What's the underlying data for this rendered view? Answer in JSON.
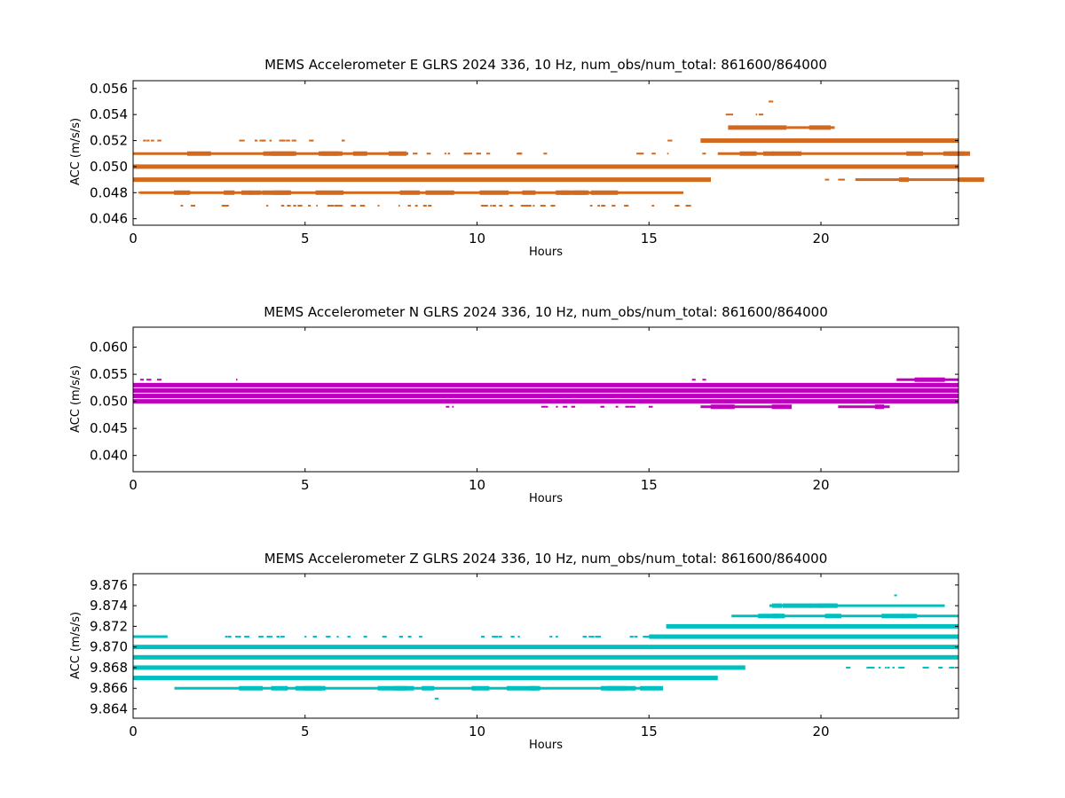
{
  "chart_data": [
    {
      "type": "scatter",
      "title": "MEMS Accelerometer E GLRS 2024 336, 10 Hz, num_obs/num_total: 861600/864000",
      "xlabel": "Hours",
      "ylabel": "ACC (m/s/s)",
      "xlim": [
        0,
        24
      ],
      "ylim": [
        0.0455,
        0.0566
      ],
      "xticks": [
        0,
        5,
        10,
        15,
        20
      ],
      "yticks": [
        0.046,
        0.048,
        0.05,
        0.052,
        0.054,
        0.056
      ],
      "ytick_labels": [
        "0.046",
        "0.048",
        "0.050",
        "0.052",
        "0.054",
        "0.056"
      ],
      "color": "#d2691e",
      "levels": [
        {
          "y": 0.047,
          "segments": [
            [
              1.3,
              16.2,
              "sparse"
            ]
          ]
        },
        {
          "y": 0.048,
          "segments": [
            [
              0.0,
              0.2,
              "sparse"
            ],
            [
              0.2,
              16.0,
              "dense"
            ]
          ]
        },
        {
          "y": 0.049,
          "segments": [
            [
              0.0,
              16.8,
              "solid"
            ],
            [
              20.0,
              21.0,
              "sparse"
            ],
            [
              21.0,
              24.0,
              "dense"
            ]
          ]
        },
        {
          "y": 0.05,
          "segments": [
            [
              0.0,
              24.0,
              "solid"
            ]
          ]
        },
        {
          "y": 0.051,
          "segments": [
            [
              0.0,
              8.0,
              "dense"
            ],
            [
              8.0,
              12.0,
              "sparse"
            ],
            [
              14.5,
              17.0,
              "sparse"
            ],
            [
              17.0,
              24.0,
              "dense"
            ]
          ]
        },
        {
          "y": 0.052,
          "segments": [
            [
              0.0,
              0.8,
              "sparse"
            ],
            [
              2.6,
              6.2,
              "sparse"
            ],
            [
              15.5,
              16.5,
              "sparse"
            ],
            [
              16.5,
              24.0,
              "solid"
            ]
          ]
        },
        {
          "y": 0.053,
          "segments": [
            [
              17.3,
              19.0,
              "solid"
            ],
            [
              19.0,
              20.4,
              "dense"
            ]
          ]
        },
        {
          "y": 0.054,
          "segments": [
            [
              17.2,
              18.9,
              "sparse"
            ]
          ]
        },
        {
          "y": 0.055,
          "segments": [
            [
              18.4,
              18.5,
              "sparse"
            ]
          ]
        }
      ]
    },
    {
      "type": "scatter",
      "title": "MEMS Accelerometer N GLRS 2024 336, 10 Hz, num_obs/num_total: 861600/864000",
      "xlabel": "Hours",
      "ylabel": "ACC (m/s/s)",
      "xlim": [
        0,
        24
      ],
      "ylim": [
        0.037,
        0.0637
      ],
      "xticks": [
        0,
        5,
        10,
        15,
        20
      ],
      "yticks": [
        0.04,
        0.045,
        0.05,
        0.055,
        0.06
      ],
      "ytick_labels": [
        "0.040",
        "0.045",
        "0.050",
        "0.055",
        "0.060"
      ],
      "color": "#bf00bf",
      "levels": [
        {
          "y": 0.049,
          "segments": [
            [
              9.0,
              9.5,
              "sparse"
            ],
            [
              11.5,
              15.0,
              "sparse"
            ],
            [
              16.5,
              19.0,
              "dense"
            ],
            [
              20.5,
              22.0,
              "dense"
            ]
          ]
        },
        {
          "y": 0.05,
          "segments": [
            [
              0.0,
              24.0,
              "solid"
            ]
          ]
        },
        {
          "y": 0.051,
          "segments": [
            [
              0.0,
              24.0,
              "solid"
            ]
          ]
        },
        {
          "y": 0.052,
          "segments": [
            [
              0.0,
              24.0,
              "solid"
            ]
          ]
        },
        {
          "y": 0.053,
          "segments": [
            [
              0.0,
              24.0,
              "solid"
            ]
          ]
        },
        {
          "y": 0.054,
          "segments": [
            [
              0.1,
              0.7,
              "sparse"
            ],
            [
              2.9,
              3.0,
              "sparse"
            ],
            [
              16.2,
              16.6,
              "sparse"
            ],
            [
              22.2,
              24.0,
              "dense"
            ]
          ]
        }
      ]
    },
    {
      "type": "scatter",
      "title": "MEMS Accelerometer Z GLRS 2024 336, 10 Hz, num_obs/num_total: 861600/864000",
      "xlabel": "Hours",
      "ylabel": "ACC (m/s/s)",
      "xlim": [
        0,
        24
      ],
      "ylim": [
        9.8631,
        9.8771
      ],
      "xticks": [
        0,
        5,
        10,
        15,
        20
      ],
      "yticks": [
        9.864,
        9.866,
        9.868,
        9.87,
        9.872,
        9.874,
        9.876
      ],
      "ytick_labels": [
        "9.864",
        "9.866",
        "9.868",
        "9.870",
        "9.872",
        "9.874",
        "9.876"
      ],
      "color": "#00bfbf",
      "levels": [
        {
          "y": 9.865,
          "segments": [
            [
              8.7,
              8.8,
              "sparse"
            ]
          ]
        },
        {
          "y": 9.866,
          "segments": [
            [
              1.2,
              15.0,
              "dense"
            ]
          ]
        },
        {
          "y": 9.867,
          "segments": [
            [
              0.0,
              17.0,
              "solid"
            ]
          ]
        },
        {
          "y": 9.868,
          "segments": [
            [
              0.0,
              17.8,
              "solid"
            ],
            [
              20.3,
              24.0,
              "sparse"
            ]
          ]
        },
        {
          "y": 9.869,
          "segments": [
            [
              0.0,
              24.0,
              "solid"
            ]
          ]
        },
        {
          "y": 9.87,
          "segments": [
            [
              0.0,
              24.0,
              "solid"
            ]
          ]
        },
        {
          "y": 9.871,
          "segments": [
            [
              0.0,
              1.0,
              "dense"
            ],
            [
              2.6,
              8.7,
              "sparse"
            ],
            [
              10.0,
              12.5,
              "sparse"
            ],
            [
              12.8,
              15.0,
              "sparse"
            ],
            [
              15.0,
              24.0,
              "solid"
            ]
          ]
        },
        {
          "y": 9.872,
          "segments": [
            [
              0.0,
              0.5,
              "sparse"
            ],
            [
              15.5,
              24.0,
              "solid"
            ]
          ]
        },
        {
          "y": 9.873,
          "segments": [
            [
              17.4,
              24.0,
              "dense"
            ]
          ]
        },
        {
          "y": 9.874,
          "segments": [
            [
              18.5,
              23.6,
              "dense"
            ]
          ]
        },
        {
          "y": 9.875,
          "segments": [
            [
              22.0,
              22.2,
              "sparse"
            ]
          ]
        }
      ]
    }
  ]
}
